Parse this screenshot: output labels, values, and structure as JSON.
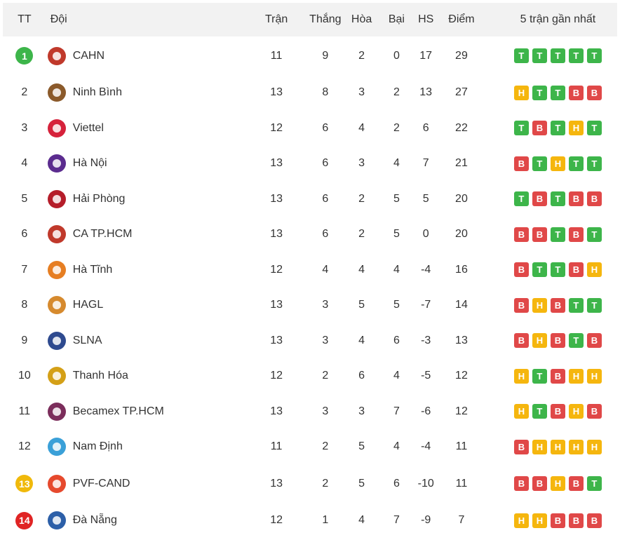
{
  "colors": {
    "win": "#3db54a",
    "draw": "#f5b60e",
    "loss": "#e04848",
    "rank_green": "#3db54a",
    "rank_yellow": "#f0b90b",
    "rank_red": "#e02424"
  },
  "header": {
    "rank": "TT",
    "team": "Đội",
    "played": "Trận",
    "won": "Thắng",
    "drawn": "Hòa",
    "lost": "Bại",
    "gd": "HS",
    "points": "Điểm",
    "form": "5 trận gần nhất"
  },
  "rows": [
    {
      "rank": "1",
      "team": "CAHN",
      "played": "11",
      "won": "9",
      "drawn": "2",
      "lost": "0",
      "gd": "17",
      "points": "29",
      "form": [
        "T",
        "T",
        "T",
        "T",
        "T"
      ],
      "badge": "green",
      "logo_icon": "cahn-logo-icon",
      "logo_color": "#c0392b"
    },
    {
      "rank": "2",
      "team": "Ninh Bình",
      "played": "13",
      "won": "8",
      "drawn": "3",
      "lost": "2",
      "gd": "13",
      "points": "27",
      "form": [
        "H",
        "T",
        "T",
        "B",
        "B"
      ],
      "badge": "",
      "logo_icon": "ninh-binh-logo-icon",
      "logo_color": "#8b5a2b"
    },
    {
      "rank": "3",
      "team": "Viettel",
      "played": "12",
      "won": "6",
      "drawn": "4",
      "lost": "2",
      "gd": "6",
      "points": "22",
      "form": [
        "T",
        "B",
        "T",
        "H",
        "T"
      ],
      "badge": "",
      "logo_icon": "viettel-logo-icon",
      "logo_color": "#d6223b"
    },
    {
      "rank": "4",
      "team": "Hà Nội",
      "played": "13",
      "won": "6",
      "drawn": "3",
      "lost": "4",
      "gd": "7",
      "points": "21",
      "form": [
        "B",
        "T",
        "H",
        "T",
        "T"
      ],
      "badge": "",
      "logo_icon": "ha-noi-logo-icon",
      "logo_color": "#5b2c8f"
    },
    {
      "rank": "5",
      "team": "Hải Phòng",
      "played": "13",
      "won": "6",
      "drawn": "2",
      "lost": "5",
      "gd": "5",
      "points": "20",
      "form": [
        "T",
        "B",
        "T",
        "B",
        "B"
      ],
      "badge": "",
      "logo_icon": "hai-phong-logo-icon",
      "logo_color": "#b51d2a"
    },
    {
      "rank": "6",
      "team": "CA TP.HCM",
      "played": "13",
      "won": "6",
      "drawn": "2",
      "lost": "5",
      "gd": "0",
      "points": "20",
      "form": [
        "B",
        "B",
        "T",
        "B",
        "T"
      ],
      "badge": "",
      "logo_icon": "ca-tphcm-logo-icon",
      "logo_color": "#c0392b"
    },
    {
      "rank": "7",
      "team": "Hà Tĩnh",
      "played": "12",
      "won": "4",
      "drawn": "4",
      "lost": "4",
      "gd": "-4",
      "points": "16",
      "form": [
        "B",
        "T",
        "T",
        "B",
        "H"
      ],
      "badge": "",
      "logo_icon": "ha-tinh-logo-icon",
      "logo_color": "#e67e22"
    },
    {
      "rank": "8",
      "team": "HAGL",
      "played": "13",
      "won": "3",
      "drawn": "5",
      "lost": "5",
      "gd": "-7",
      "points": "14",
      "form": [
        "B",
        "H",
        "B",
        "T",
        "T"
      ],
      "badge": "",
      "logo_icon": "hagl-logo-icon",
      "logo_color": "#d68a2e"
    },
    {
      "rank": "9",
      "team": "SLNA",
      "played": "13",
      "won": "3",
      "drawn": "4",
      "lost": "6",
      "gd": "-3",
      "points": "13",
      "form": [
        "B",
        "H",
        "B",
        "T",
        "B"
      ],
      "badge": "",
      "logo_icon": "slna-logo-icon",
      "logo_color": "#2e4a8f"
    },
    {
      "rank": "10",
      "team": "Thanh Hóa",
      "played": "12",
      "won": "2",
      "drawn": "6",
      "lost": "4",
      "gd": "-5",
      "points": "12",
      "form": [
        "H",
        "T",
        "B",
        "H",
        "H"
      ],
      "badge": "",
      "logo_icon": "thanh-hoa-logo-icon",
      "logo_color": "#d4a017"
    },
    {
      "rank": "11",
      "team": "Becamex TP.HCM",
      "played": "13",
      "won": "3",
      "drawn": "3",
      "lost": "7",
      "gd": "-6",
      "points": "12",
      "form": [
        "H",
        "T",
        "B",
        "H",
        "B"
      ],
      "badge": "",
      "logo_icon": "becamex-logo-icon",
      "logo_color": "#7b2d5b"
    },
    {
      "rank": "12",
      "team": "Nam Định",
      "played": "11",
      "won": "2",
      "drawn": "5",
      "lost": "4",
      "gd": "-4",
      "points": "11",
      "form": [
        "B",
        "H",
        "H",
        "H",
        "H"
      ],
      "badge": "",
      "logo_icon": "nam-dinh-logo-icon",
      "logo_color": "#3aa0d8"
    },
    {
      "rank": "13",
      "team": "PVF-CAND",
      "played": "13",
      "won": "2",
      "drawn": "5",
      "lost": "6",
      "gd": "-10",
      "points": "11",
      "form": [
        "B",
        "B",
        "H",
        "B",
        "T"
      ],
      "badge": "yellow",
      "logo_icon": "pvf-cand-logo-icon",
      "logo_color": "#e6492d"
    },
    {
      "rank": "14",
      "team": "Đà Nẵng",
      "played": "12",
      "won": "1",
      "drawn": "4",
      "lost": "7",
      "gd": "-9",
      "points": "7",
      "form": [
        "H",
        "H",
        "B",
        "B",
        "B"
      ],
      "badge": "red",
      "logo_icon": "da-nang-logo-icon",
      "logo_color": "#2c5fa8"
    }
  ]
}
